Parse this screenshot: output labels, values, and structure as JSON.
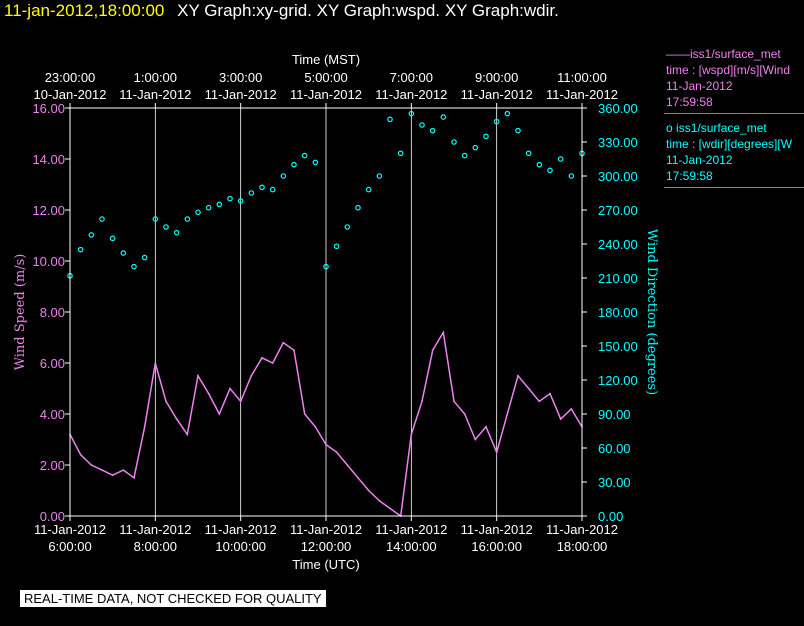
{
  "header": {
    "date": "11-jan-2012,18:00:00",
    "title": "XY Graph:xy-grid.  XY Graph:wspd.  XY Graph:wdir."
  },
  "legend": [
    {
      "symbol": "——",
      "name": "iss1/surface_met",
      "field": "time : [wspd][m/s][Wind",
      "date": "11-Jan-2012",
      "time": "17:59:58",
      "color": "#ee82ee"
    },
    {
      "symbol": "o",
      "name": "iss1/surface_met",
      "field": "time : [wdir][degrees][W",
      "date": "11-Jan-2012",
      "time": "17:59:58",
      "color": "#00ffff"
    }
  ],
  "footer": "REAL-TIME DATA, NOT CHECKED FOR QUALITY",
  "chart_data": {
    "type": "line",
    "top_axis": {
      "label": "Time (MST)",
      "ticks": [
        {
          "time": "23:00:00",
          "date": "10-Jan-2012"
        },
        {
          "time": "1:00:00",
          "date": "11-Jan-2012"
        },
        {
          "time": "3:00:00",
          "date": "11-Jan-2012"
        },
        {
          "time": "5:00:00",
          "date": "11-Jan-2012"
        },
        {
          "time": "7:00:00",
          "date": "11-Jan-2012"
        },
        {
          "time": "9:00:00",
          "date": "11-Jan-2012"
        },
        {
          "time": "11:00:00",
          "date": "11-Jan-2012"
        }
      ]
    },
    "bottom_axis": {
      "label": "Time (UTC)",
      "ticks": [
        {
          "date": "11-Jan-2012",
          "time": "6:00:00"
        },
        {
          "date": "11-Jan-2012",
          "time": "8:00:00"
        },
        {
          "date": "11-Jan-2012",
          "time": "10:00:00"
        },
        {
          "date": "11-Jan-2012",
          "time": "12:00:00"
        },
        {
          "date": "11-Jan-2012",
          "time": "14:00:00"
        },
        {
          "date": "11-Jan-2012",
          "time": "16:00:00"
        },
        {
          "date": "11-Jan-2012",
          "time": "18:00:00"
        }
      ],
      "range_hours_utc": [
        6,
        18
      ]
    },
    "left_axis": {
      "label": "Wind Speed (m/s)",
      "range": [
        0,
        16
      ],
      "ticks": [
        "0.00",
        "2.00",
        "4.00",
        "6.00",
        "8.00",
        "10.00",
        "12.00",
        "14.00",
        "16.00"
      ],
      "color": "#ee82ee"
    },
    "right_axis": {
      "label": "Wind Direction (degrees)",
      "range": [
        0,
        360
      ],
      "ticks": [
        "0.00",
        "30.00",
        "60.00",
        "90.00",
        "120.00",
        "150.00",
        "180.00",
        "210.00",
        "240.00",
        "270.00",
        "300.00",
        "330.00",
        "360.00"
      ],
      "color": "#00ffff"
    },
    "grid": "vertical",
    "series": [
      {
        "name": "iss1/surface_met wspd",
        "type": "line",
        "axis": "left",
        "color": "#ee82ee",
        "x_hours_utc": [
          6,
          6.25,
          6.5,
          6.75,
          7,
          7.25,
          7.5,
          7.75,
          8,
          8.25,
          8.5,
          8.75,
          9,
          9.25,
          9.5,
          9.75,
          10,
          10.25,
          10.5,
          10.75,
          11,
          11.25,
          11.5,
          11.75,
          12,
          12.25,
          12.5,
          12.75,
          13,
          13.25,
          13.5,
          13.75,
          14,
          14.25,
          14.5,
          14.75,
          15,
          15.25,
          15.5,
          15.75,
          16,
          16.25,
          16.5,
          16.75,
          17,
          17.25,
          17.5,
          17.75,
          18
        ],
        "y": [
          3.2,
          2.4,
          2.0,
          1.8,
          1.6,
          1.8,
          1.5,
          3.5,
          6.0,
          4.5,
          3.8,
          3.2,
          5.5,
          4.8,
          4.0,
          5.0,
          4.5,
          5.5,
          6.2,
          6.0,
          6.8,
          6.5,
          4.0,
          3.5,
          2.8,
          2.5,
          2.0,
          1.5,
          1.0,
          0.6,
          0.3,
          0.0,
          3.2,
          4.5,
          6.5,
          7.2,
          4.5,
          4.0,
          3.0,
          3.5,
          2.5,
          4.0,
          5.5,
          5.0,
          4.5,
          4.8,
          3.8,
          4.2,
          3.5
        ]
      },
      {
        "name": "iss1/surface_met wdir",
        "type": "scatter",
        "axis": "right",
        "color": "#00ffff",
        "x_hours_utc": [
          6,
          6.25,
          6.5,
          6.75,
          7,
          7.25,
          7.5,
          7.75,
          8,
          8.25,
          8.5,
          8.75,
          9,
          9.25,
          9.5,
          9.75,
          10,
          10.25,
          10.5,
          10.75,
          11,
          11.25,
          11.5,
          11.75,
          12,
          12.25,
          12.5,
          12.75,
          13,
          13.25,
          13.5,
          13.75,
          14,
          14.25,
          14.5,
          14.75,
          15,
          15.25,
          15.5,
          15.75,
          16,
          16.25,
          16.5,
          16.75,
          17,
          17.25,
          17.5,
          17.75,
          18
        ],
        "y": [
          212,
          235,
          248,
          262,
          245,
          232,
          220,
          228,
          262,
          255,
          250,
          262,
          268,
          272,
          275,
          280,
          278,
          285,
          290,
          288,
          300,
          310,
          318,
          312,
          220,
          238,
          255,
          272,
          288,
          300,
          350,
          320,
          355,
          345,
          340,
          352,
          330,
          318,
          325,
          335,
          348,
          355,
          340,
          320,
          310,
          305,
          315,
          300,
          320
        ]
      }
    ]
  }
}
